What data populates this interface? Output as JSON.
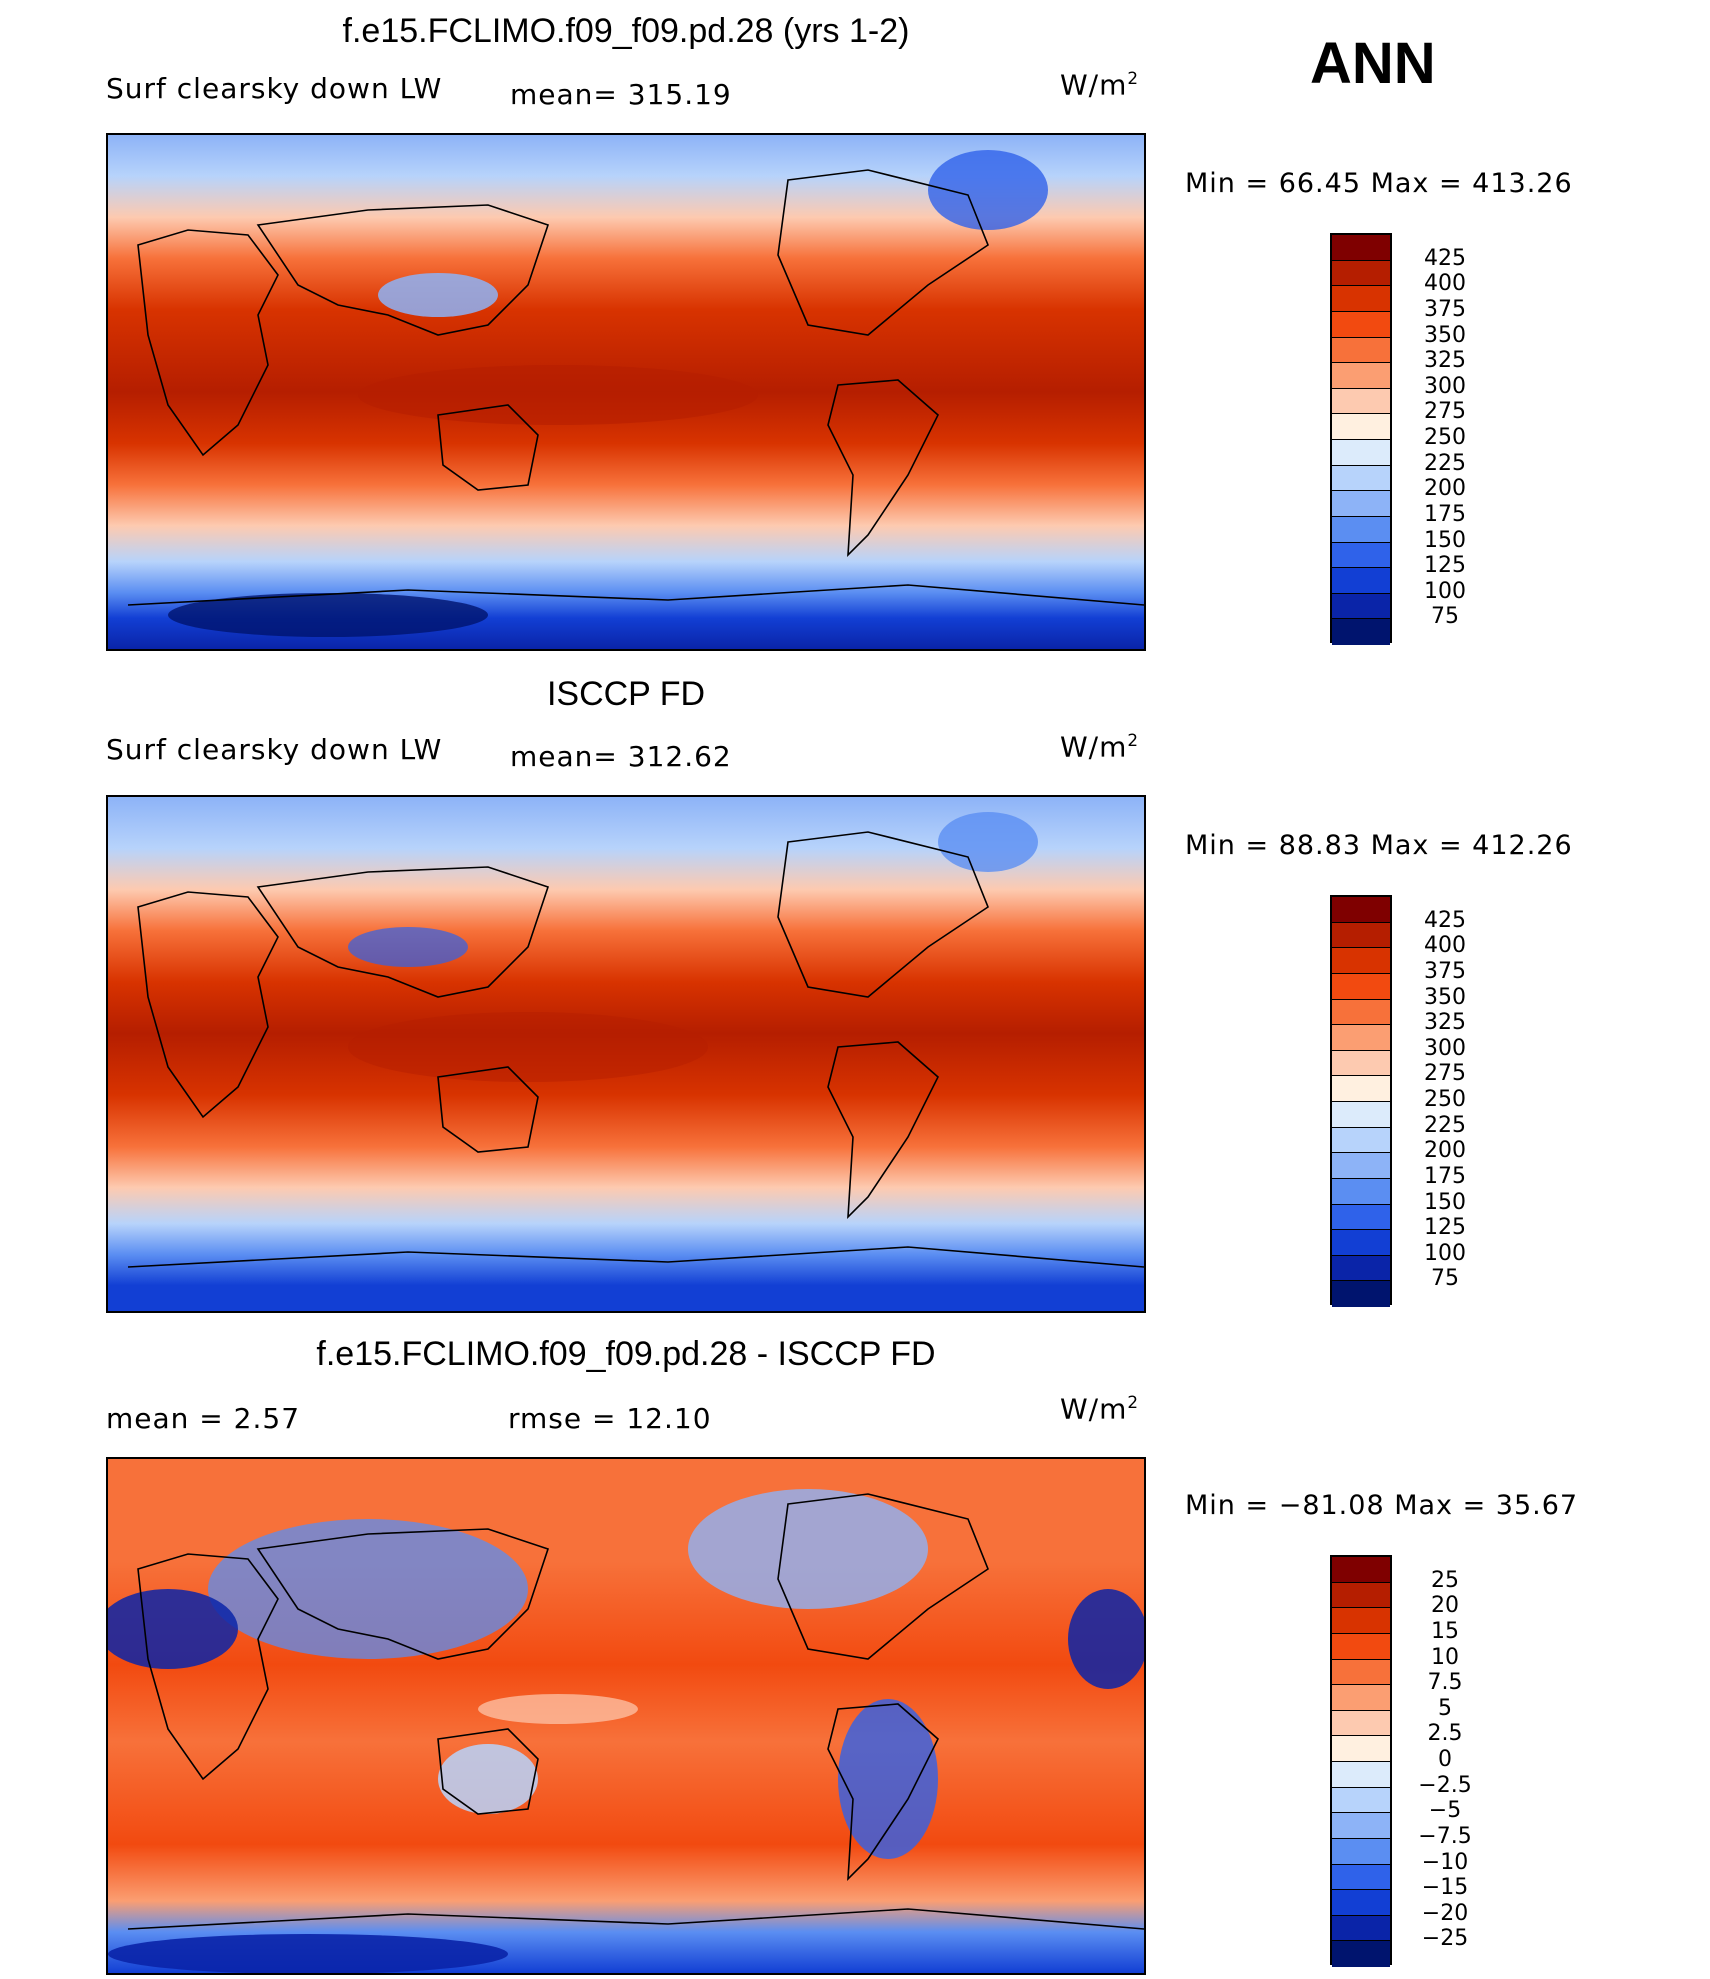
{
  "season": "ANN",
  "units_base": "W/m",
  "units_exp": "2",
  "panels": [
    {
      "title": "f.e15.FCLIMO.f09_f09.pd.28 (yrs 1-2)",
      "left_label": "Surf clearsky down LW",
      "center_label": "mean= 315.19",
      "min_max": "Min =   66.45 Max = 413.26",
      "colorbar_labels": [
        "425",
        "400",
        "375",
        "350",
        "325",
        "300",
        "275",
        "250",
        "225",
        "200",
        "175",
        "150",
        "125",
        "100",
        "75"
      ]
    },
    {
      "title": "ISCCP FD",
      "left_label": "Surf clearsky down LW",
      "center_label": "mean= 312.62",
      "min_max": "Min =   88.83 Max = 412.26",
      "colorbar_labels": [
        "425",
        "400",
        "375",
        "350",
        "325",
        "300",
        "275",
        "250",
        "225",
        "200",
        "175",
        "150",
        "125",
        "100",
        "75"
      ]
    },
    {
      "title": "f.e15.FCLIMO.f09_f09.pd.28 - ISCCP FD",
      "left_label": "mean =    2.57",
      "center_label": "rmse =   12.10",
      "min_max": "Min = −81.08 Max =   35.67",
      "colorbar_labels": [
        "25",
        "20",
        "15",
        "10",
        "7.5",
        "5",
        "2.5",
        "0",
        "−2.5",
        "−5",
        "−7.5",
        "−10",
        "−15",
        "−20",
        "−25"
      ]
    }
  ],
  "colors": {
    "abs_scale": [
      "#7f0000",
      "#b51e00",
      "#d83300",
      "#f24a10",
      "#f7713a",
      "#fb9e72",
      "#fdcab0",
      "#fff0e0",
      "#dcebfb",
      "#b7d3fb",
      "#8db3f7",
      "#5b8ef2",
      "#2f62ea",
      "#123fd4",
      "#0a24a8",
      "#00146e"
    ],
    "diff_scale": [
      "#7f0000",
      "#b51e00",
      "#d83300",
      "#f24a10",
      "#f7713a",
      "#fb9e72",
      "#fdcab0",
      "#fff0e0",
      "#dcebfb",
      "#b7d3fb",
      "#8db3f7",
      "#5b8ef2",
      "#2f62ea",
      "#123fd4",
      "#0a24a8",
      "#00146e"
    ]
  }
}
